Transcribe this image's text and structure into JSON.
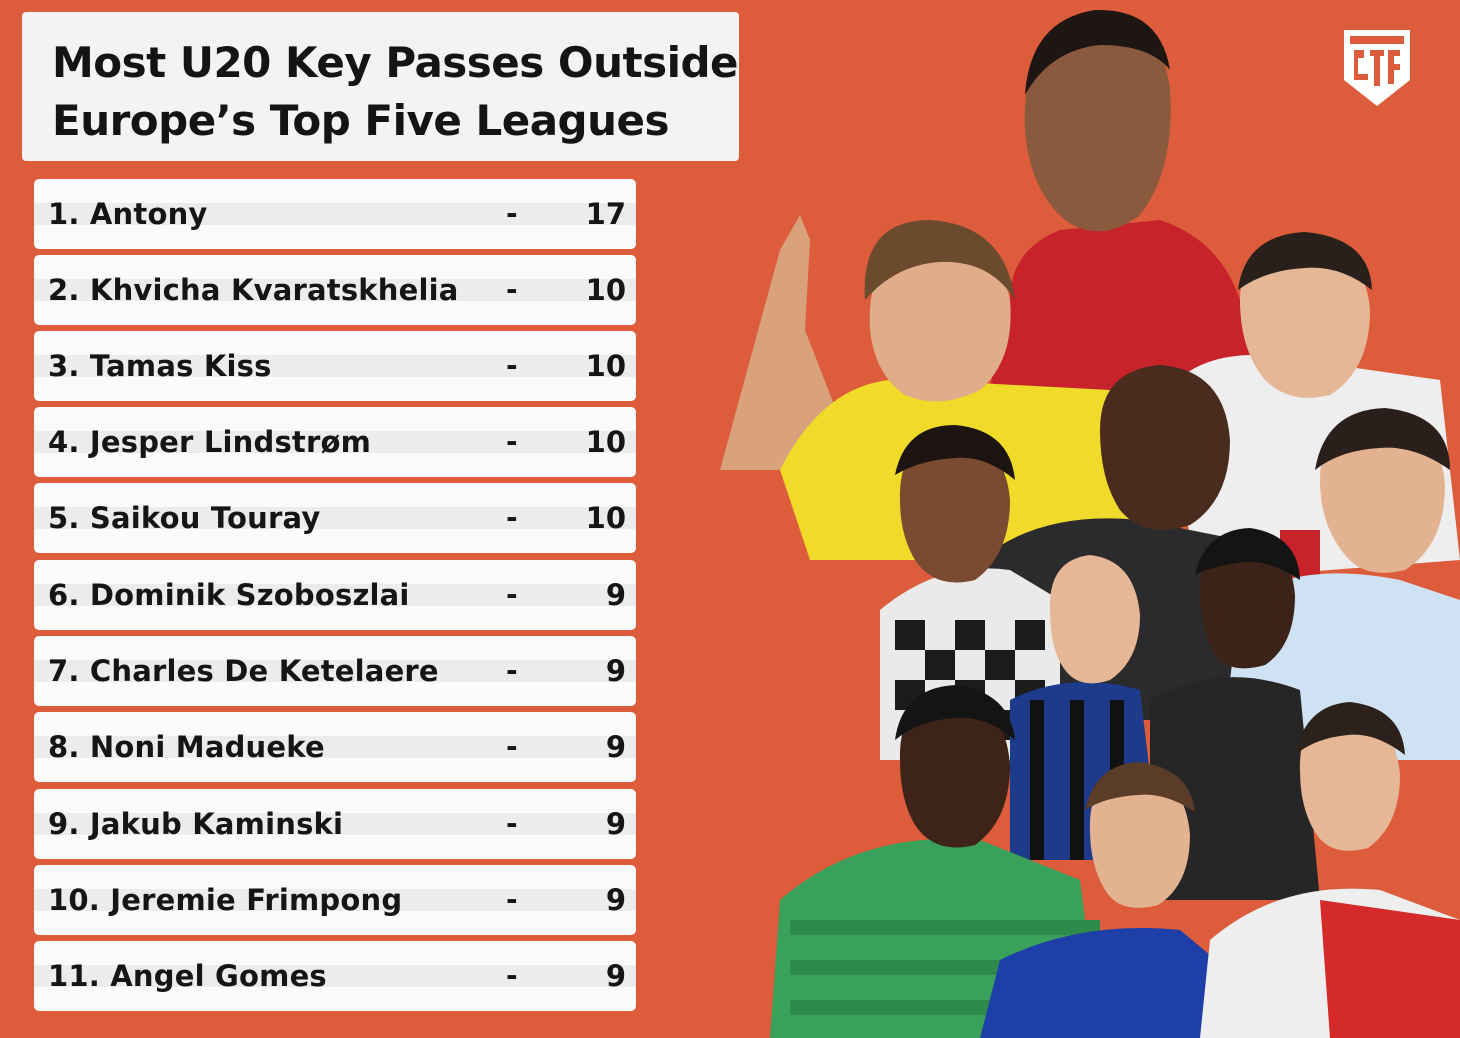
{
  "title": {
    "line1": "Most U20 Key Passes Outside",
    "line2": "Europe’s Top Five Leagues"
  },
  "colors": {
    "background": "#dc5c3b",
    "card": "#f4f3f1",
    "text": "#151515"
  },
  "logo": {
    "icon": "brand-shield-logo-icon",
    "color": "#ffffff"
  },
  "rankings": [
    {
      "label": "1. Antony",
      "value": "17"
    },
    {
      "label": "2. Khvicha Kvaratskhelia",
      "value": "10"
    },
    {
      "label": "3. Tamas Kiss",
      "value": "10"
    },
    {
      "label": "4. Jesper Lindstrøm",
      "value": "10"
    },
    {
      "label": "5. Saikou Touray",
      "value": "10"
    },
    {
      "label": "6. Dominik Szoboszlai",
      "value": "9"
    },
    {
      "label": "7. Charles De Ketelaere",
      "value": "9"
    },
    {
      "label": "8. Noni Madueke",
      "value": "9"
    },
    {
      "label": "9. Jakub Kaminski",
      "value": "9"
    },
    {
      "label": "10. Jeremie Frimpong",
      "value": "9"
    },
    {
      "label": "11. Angel Gomes",
      "value": "9"
    }
  ],
  "separator": "-",
  "photo": {
    "icon": "player-collage-image"
  }
}
